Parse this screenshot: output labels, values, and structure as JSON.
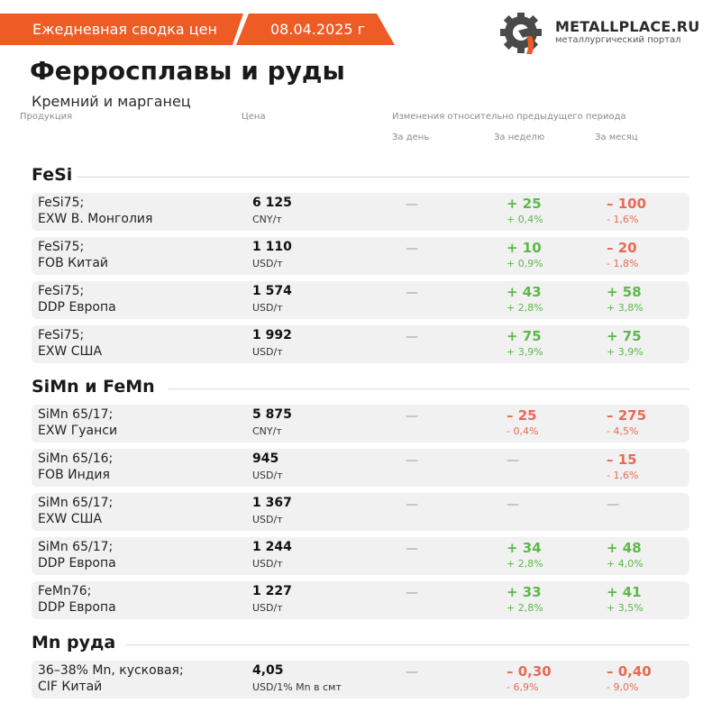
{
  "colors": {
    "accent": "#ef5b25",
    "positive": "#5cb84a",
    "negative": "#e86a55",
    "row_bg": "#f1f1f1"
  },
  "header": {
    "label": "Ежедневная сводка цен",
    "date": "08.04.2025 г"
  },
  "logo": {
    "name": "METALLPLACE.RU",
    "tagline": "металлургический портал",
    "icon": "gear-ladle-icon"
  },
  "title": "Ферросплавы и руды",
  "subtitle": "Кремний и марганец",
  "columns": {
    "product": "Продукция",
    "price": "Цена",
    "changes": "Изменения относительно предыдущего периода",
    "day": "За день",
    "week": "За неделю",
    "month": "За месяц"
  },
  "sections": [
    {
      "title": "FeSi",
      "rows": [
        {
          "product": [
            "FeSi75;",
            "EXW В. Монголия"
          ],
          "price": "6 125",
          "unit": "CNY/т",
          "day": {
            "abs": "—"
          },
          "week": {
            "abs": "+ 25",
            "pct": "+ 0,4%",
            "dir": "pos"
          },
          "month": {
            "abs": "– 100",
            "pct": "- 1,6%",
            "dir": "neg"
          }
        },
        {
          "product": [
            "FeSi75;",
            "FOB Китай"
          ],
          "price": "1 110",
          "unit": "USD/т",
          "day": {
            "abs": "—"
          },
          "week": {
            "abs": "+ 10",
            "pct": "+ 0,9%",
            "dir": "pos"
          },
          "month": {
            "abs": "– 20",
            "pct": "- 1,8%",
            "dir": "neg"
          }
        },
        {
          "product": [
            "FeSi75;",
            "DDP Европа"
          ],
          "price": "1 574",
          "unit": "USD/т",
          "day": {
            "abs": "—"
          },
          "week": {
            "abs": "+ 43",
            "pct": "+ 2,8%",
            "dir": "pos"
          },
          "month": {
            "abs": "+ 58",
            "pct": "+ 3,8%",
            "dir": "pos"
          }
        },
        {
          "product": [
            "FeSi75;",
            "EXW США"
          ],
          "price": "1 992",
          "unit": "USD/т",
          "day": {
            "abs": "—"
          },
          "week": {
            "abs": "+ 75",
            "pct": "+ 3,9%",
            "dir": "pos"
          },
          "month": {
            "abs": "+ 75",
            "pct": "+ 3,9%",
            "dir": "pos"
          }
        }
      ]
    },
    {
      "title": "SiMn и FeMn",
      "rows": [
        {
          "product": [
            "SiMn 65/17;",
            "EXW Гуанси"
          ],
          "price": "5 875",
          "unit": "CNY/т",
          "day": {
            "abs": "—"
          },
          "week": {
            "abs": "– 25",
            "pct": "- 0,4%",
            "dir": "neg"
          },
          "month": {
            "abs": "– 275",
            "pct": "- 4,5%",
            "dir": "neg"
          }
        },
        {
          "product": [
            "SiMn 65/16;",
            "FOB Индия"
          ],
          "price": "945",
          "unit": "USD/т",
          "day": {
            "abs": "—"
          },
          "week": {
            "abs": "—"
          },
          "month": {
            "abs": "– 15",
            "pct": "- 1,6%",
            "dir": "neg"
          }
        },
        {
          "product": [
            "SiMn 65/17;",
            "EXW США"
          ],
          "price": "1 367",
          "unit": "USD/т",
          "day": {
            "abs": "—"
          },
          "week": {
            "abs": "—"
          },
          "month": {
            "abs": "—"
          }
        },
        {
          "product": [
            "SiMn 65/17;",
            "DDP Европа"
          ],
          "price": "1 244",
          "unit": "USD/т",
          "day": {
            "abs": "—"
          },
          "week": {
            "abs": "+ 34",
            "pct": "+ 2,8%",
            "dir": "pos"
          },
          "month": {
            "abs": "+ 48",
            "pct": "+ 4,0%",
            "dir": "pos"
          }
        },
        {
          "product": [
            "FeMn76;",
            "DDP Европа"
          ],
          "price": "1 227",
          "unit": "USD/т",
          "day": {
            "abs": "—"
          },
          "week": {
            "abs": "+ 33",
            "pct": "+ 2,8%",
            "dir": "pos"
          },
          "month": {
            "abs": "+ 41",
            "pct": "+ 3,5%",
            "dir": "pos"
          }
        }
      ]
    },
    {
      "title": "Mn руда",
      "rows": [
        {
          "product": [
            "36–38% Mn, кусковая;",
            "CIF Китай"
          ],
          "price": "4,05",
          "unit": "USD/1% Mn в смт",
          "day": {
            "abs": "—"
          },
          "week": {
            "abs": "– 0,30",
            "pct": "- 6,9%",
            "dir": "neg"
          },
          "month": {
            "abs": "– 0,40",
            "pct": "- 9,0%",
            "dir": "neg"
          }
        }
      ]
    }
  ]
}
